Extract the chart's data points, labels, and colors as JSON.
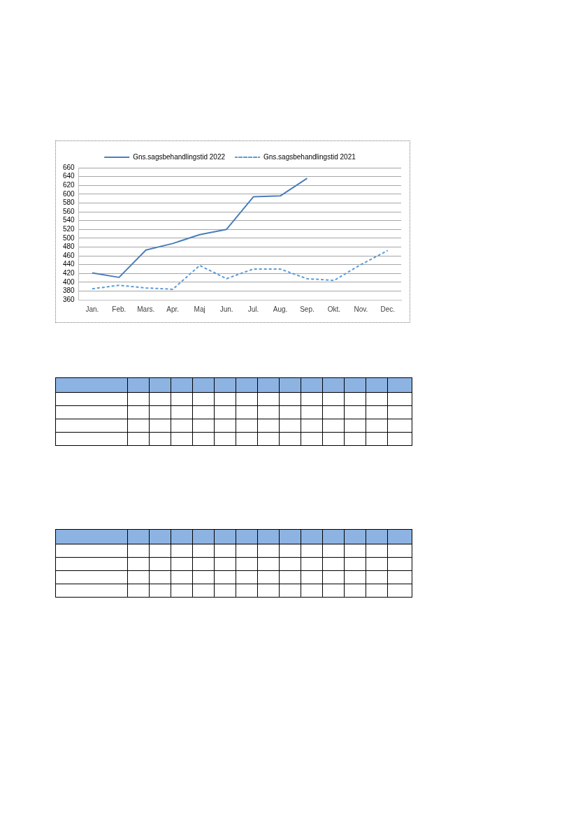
{
  "chart_data": {
    "type": "line",
    "categories": [
      "Jan.",
      "Feb.",
      "Mars.",
      "Apr.",
      "Maj",
      "Jun.",
      "Jul.",
      "Aug.",
      "Sep.",
      "Okt.",
      "Nov.",
      "Dec."
    ],
    "series": [
      {
        "name": "Gns.sagsbehandlingstid 2022",
        "color": "#4a7ebb",
        "line_style": "solid",
        "values": [
          421,
          411,
          473,
          488,
          508,
          520,
          594,
          596,
          636,
          null,
          null,
          null
        ]
      },
      {
        "name": "Gns.sagsbehandlingstid 2021",
        "color": "#5b9bd5",
        "line_style": "dashed",
        "values": [
          385,
          393,
          387,
          384,
          438,
          408,
          430,
          430,
          408,
          404,
          440,
          472
        ]
      }
    ],
    "ylim": [
      360,
      660
    ],
    "yticks": [
      360,
      380,
      400,
      420,
      440,
      460,
      480,
      500,
      520,
      540,
      560,
      580,
      600,
      620,
      640,
      660
    ],
    "grid": "y",
    "legend": "top",
    "marker": "none"
  }
}
